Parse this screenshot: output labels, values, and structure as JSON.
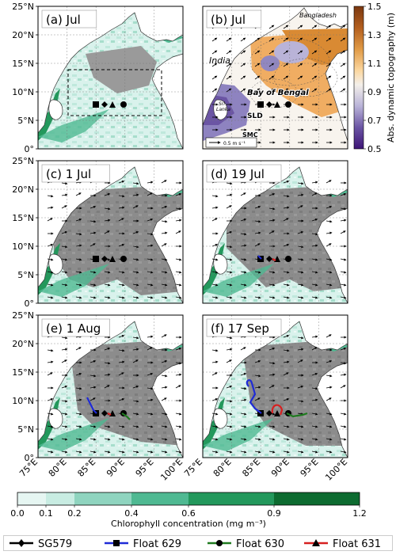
{
  "panels": [
    {
      "id": "a",
      "title": "(a) Jul",
      "kind": "chl",
      "box": true,
      "floats": false
    },
    {
      "id": "b",
      "title": "(b) Jul",
      "kind": "adt",
      "floats": false
    },
    {
      "id": "c",
      "title": "(c) 1 Jul",
      "kind": "chl",
      "floats": false
    },
    {
      "id": "d",
      "title": "(d) 19 Jul",
      "kind": "chl",
      "floats": true
    },
    {
      "id": "e",
      "title": "(e) 1 Aug",
      "kind": "chl",
      "floats": true
    },
    {
      "id": "f",
      "title": "(f) 17 Sep",
      "kind": "chl",
      "floats": true
    }
  ],
  "lat_ticks": [
    "0°",
    "5°N",
    "10°N",
    "15°N",
    "20°N",
    "25°N"
  ],
  "lon_ticks": [
    "75°E",
    "80°E",
    "85°E",
    "90°E",
    "95°E",
    "100°E"
  ],
  "labels_b": {
    "bangladesh": "Bangladesh",
    "india": "India",
    "bay": "Bay of Bengal",
    "sri": "Sri",
    "lanka": "Lanka",
    "sld": "SLD",
    "smc": "SMC",
    "vec": "0.5 m s⁻¹"
  },
  "adt_colorbar": {
    "label": "Abs. dynamic topography (m)",
    "ticks": [
      "1.5",
      "1.3",
      "1.1",
      "0.9",
      "0.7",
      "0.5"
    ],
    "colors": [
      "#7a3710",
      "#a8551c",
      "#c97a2b",
      "#e09a45",
      "#f1bb74",
      "#fcdcaa",
      "#f4f0ea",
      "#dcdbec",
      "#b9b3d8",
      "#9187bf",
      "#6b55a4",
      "#44207f"
    ]
  },
  "chl_colorbar": {
    "label": "Chlorophyll concentration (mg m⁻³)",
    "ticks": [
      "0.0",
      "0.1",
      "0.2",
      "0.4",
      "0.6",
      "0.9",
      "1.2"
    ],
    "colors": [
      "#e6f6f2",
      "#c8ece2",
      "#8fd4bf",
      "#4fb992",
      "#23985c",
      "#0d6b30"
    ]
  },
  "legend": [
    {
      "label": "SG579",
      "color": "#000000",
      "marker": "diamond"
    },
    {
      "label": "Float 629",
      "color": "#1f2bd6",
      "marker": "square"
    },
    {
      "label": "Float 630",
      "color": "#1f7a1f",
      "marker": "circle"
    },
    {
      "label": "Float 631",
      "color": "#d62020",
      "marker": "triangle"
    }
  ]
}
